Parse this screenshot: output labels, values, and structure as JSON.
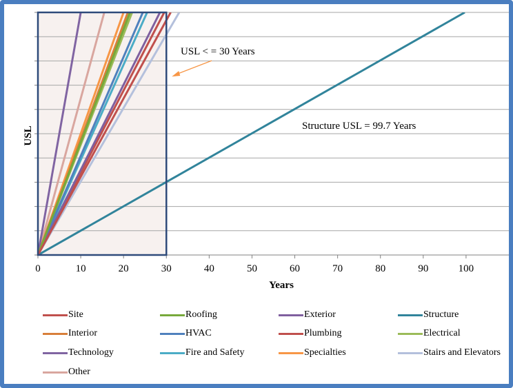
{
  "chart_data": {
    "type": "line",
    "title": "",
    "xlabel": "Years",
    "ylabel": "USL",
    "xlim": [
      0,
      110
    ],
    "ylim": [
      0,
      100
    ],
    "x_ticks": [
      0,
      10,
      20,
      30,
      40,
      50,
      60,
      70,
      80,
      90,
      100
    ],
    "grid": "horizontal",
    "legend_position": "bottom",
    "series": [
      {
        "name": "Site",
        "color": "#c0504d",
        "usl_years": 31,
        "points": [
          [
            0,
            0
          ],
          [
            31,
            100
          ]
        ]
      },
      {
        "name": "Roofing",
        "color": "#77a93b",
        "usl_years": 21.5,
        "points": [
          [
            0,
            0
          ],
          [
            21.5,
            100
          ]
        ]
      },
      {
        "name": "Exterior",
        "color": "#7f5f9f",
        "usl_years": 28.5,
        "points": [
          [
            0,
            0
          ],
          [
            28.5,
            100
          ]
        ]
      },
      {
        "name": "Structure",
        "color": "#31849b",
        "usl_years": 99.7,
        "points": [
          [
            0,
            0
          ],
          [
            99.7,
            100
          ]
        ]
      },
      {
        "name": "Interior",
        "color": "#d87f3a",
        "usl_years": 21,
        "points": [
          [
            0,
            0
          ],
          [
            21,
            100
          ]
        ]
      },
      {
        "name": "HVAC",
        "color": "#4f81bd",
        "usl_years": 24.5,
        "points": [
          [
            0,
            0
          ],
          [
            24.5,
            100
          ]
        ]
      },
      {
        "name": "Plumbing",
        "color": "#c0504d",
        "usl_years": 29.5,
        "points": [
          [
            0,
            0
          ],
          [
            29.5,
            100
          ]
        ]
      },
      {
        "name": "Electrical",
        "color": "#9bbb59",
        "usl_years": 22,
        "points": [
          [
            0,
            0
          ],
          [
            22,
            100
          ]
        ]
      },
      {
        "name": "Technology",
        "color": "#8064a2",
        "usl_years": 10,
        "points": [
          [
            0,
            0
          ],
          [
            10,
            100
          ]
        ]
      },
      {
        "name": "Fire and Safety",
        "color": "#4bacc6",
        "usl_years": 25.5,
        "points": [
          [
            0,
            0
          ],
          [
            25.5,
            100
          ]
        ]
      },
      {
        "name": "Specialties",
        "color": "#f79646",
        "usl_years": 20,
        "points": [
          [
            0,
            0
          ],
          [
            20,
            100
          ]
        ]
      },
      {
        "name": "Stairs and Elevators",
        "color": "#b4c0dc",
        "usl_years": 33,
        "points": [
          [
            0,
            0
          ],
          [
            33,
            100
          ]
        ]
      },
      {
        "name": "Other",
        "color": "#d9a69f",
        "usl_years": 15.5,
        "points": [
          [
            0,
            0
          ],
          [
            15.5,
            100
          ]
        ]
      }
    ],
    "highlight_region": {
      "x": [
        0,
        30
      ],
      "y": [
        0,
        100
      ],
      "fill": "#f7f1ef",
      "border": "#2e4a7a"
    },
    "annotations": [
      {
        "text": "USL < =  30 Years",
        "arrow_to": [
          30,
          73
        ]
      },
      {
        "text": "Structure USL = 99.7 Years"
      }
    ]
  }
}
